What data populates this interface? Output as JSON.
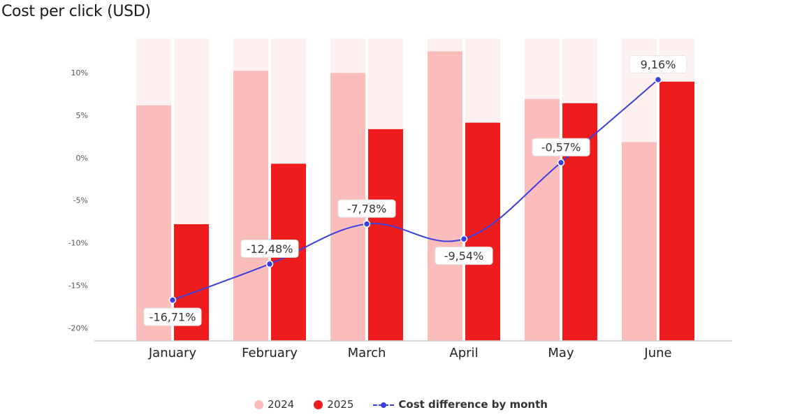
{
  "title": "Cost per click (USD)",
  "colors": {
    "bar_2024": "#fbbcbc",
    "bar_2025": "#ee1c1c",
    "bar_bg": "#fff1f1",
    "line": "#3b3fe0",
    "axis": "#cccccc",
    "tick_text": "#555555"
  },
  "chart_data": {
    "type": "bar",
    "categories": [
      "January",
      "February",
      "March",
      "April",
      "May",
      "June"
    ],
    "series": [
      {
        "name": "2024",
        "type": "bar",
        "values": [
          10.9,
          12.5,
          12.4,
          13.4,
          11.2,
          9.2
        ]
      },
      {
        "name": "2025",
        "type": "bar",
        "values": [
          5.4,
          8.2,
          9.8,
          10.1,
          11.0,
          12.0
        ]
      },
      {
        "name": "Cost difference by month",
        "type": "line",
        "axis": "y",
        "values": [
          -16.71,
          -12.48,
          -7.78,
          -9.54,
          -0.57,
          9.16
        ]
      }
    ],
    "bar_scale_max": 14,
    "y_axis": {
      "ticks": [
        "10%",
        "5%",
        "0%",
        "-5%",
        "-10%",
        "-15%",
        "-20%"
      ],
      "tick_values": [
        10,
        5,
        0,
        -5,
        -10,
        -15,
        -20
      ],
      "ylim": [
        -21.5,
        14
      ]
    },
    "data_labels": [
      "-16,71%",
      "-12,48%",
      "-7,78%",
      "-9,54%",
      "-0,57%",
      "9,16%"
    ],
    "legend": {
      "position": "bottom",
      "items": [
        "2024",
        "2025",
        "Cost difference by month"
      ]
    },
    "grid": false
  }
}
